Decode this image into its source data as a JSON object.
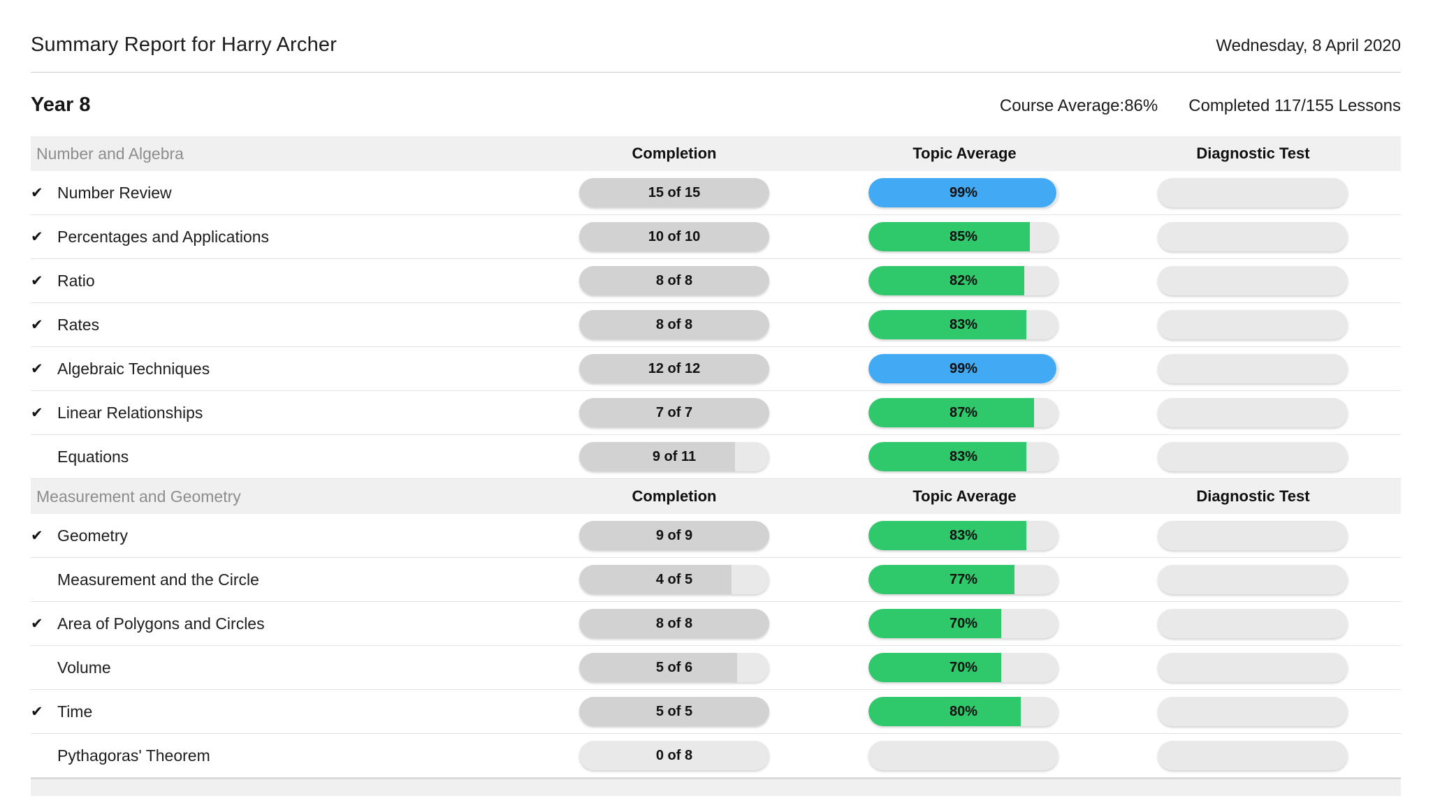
{
  "page": {
    "title": "Summary Report for Harry Archer",
    "date": "Wednesday, 8 April 2020"
  },
  "course": {
    "name": "Year 8",
    "average": "Course Average:86%",
    "completed": "Completed 117/155 Lessons"
  },
  "icons": {
    "check": "✔"
  },
  "colors": {
    "green": "#2fc96b",
    "blue": "#42aaf5",
    "completion_fill": "#d2d2d2",
    "track": "#e9e9e9",
    "section_band": "#f0f0f0"
  },
  "table": {
    "columns": [
      "Completion",
      "Topic Average",
      "Diagnostic Test"
    ],
    "sections": [
      {
        "name": "Number and Algebra",
        "rows": [
          {
            "topic": "Number Review",
            "checked": true,
            "completion": {
              "label": "15 of 15",
              "pct": 100
            },
            "average": {
              "label": "99%",
              "pct": 99,
              "color": "blue"
            },
            "diagnostic": null
          },
          {
            "topic": "Percentages and Applications",
            "checked": true,
            "completion": {
              "label": "10 of 10",
              "pct": 100
            },
            "average": {
              "label": "85%",
              "pct": 85,
              "color": "green"
            },
            "diagnostic": null
          },
          {
            "topic": "Ratio",
            "checked": true,
            "completion": {
              "label": "8 of 8",
              "pct": 100
            },
            "average": {
              "label": "82%",
              "pct": 82,
              "color": "green"
            },
            "diagnostic": null
          },
          {
            "topic": "Rates",
            "checked": true,
            "completion": {
              "label": "8 of 8",
              "pct": 100
            },
            "average": {
              "label": "83%",
              "pct": 83,
              "color": "green"
            },
            "diagnostic": null
          },
          {
            "topic": "Algebraic Techniques",
            "checked": true,
            "completion": {
              "label": "12 of 12",
              "pct": 100
            },
            "average": {
              "label": "99%",
              "pct": 99,
              "color": "blue"
            },
            "diagnostic": null
          },
          {
            "topic": "Linear Relationships",
            "checked": true,
            "completion": {
              "label": "7 of 7",
              "pct": 100
            },
            "average": {
              "label": "87%",
              "pct": 87,
              "color": "green"
            },
            "diagnostic": null
          },
          {
            "topic": "Equations",
            "checked": false,
            "completion": {
              "label": "9 of 11",
              "pct": 82
            },
            "average": {
              "label": "83%",
              "pct": 83,
              "color": "green"
            },
            "diagnostic": null
          }
        ]
      },
      {
        "name": "Measurement and Geometry",
        "rows": [
          {
            "topic": "Geometry",
            "checked": true,
            "completion": {
              "label": "9 of 9",
              "pct": 100
            },
            "average": {
              "label": "83%",
              "pct": 83,
              "color": "green"
            },
            "diagnostic": null
          },
          {
            "topic": "Measurement and the Circle",
            "checked": false,
            "completion": {
              "label": "4 of 5",
              "pct": 80
            },
            "average": {
              "label": "77%",
              "pct": 77,
              "color": "green"
            },
            "diagnostic": null
          },
          {
            "topic": "Area of Polygons and Circles",
            "checked": true,
            "completion": {
              "label": "8 of 8",
              "pct": 100
            },
            "average": {
              "label": "70%",
              "pct": 70,
              "color": "green"
            },
            "diagnostic": null
          },
          {
            "topic": "Volume",
            "checked": false,
            "completion": {
              "label": "5 of 6",
              "pct": 83
            },
            "average": {
              "label": "70%",
              "pct": 70,
              "color": "green"
            },
            "diagnostic": null
          },
          {
            "topic": "Time",
            "checked": true,
            "completion": {
              "label": "5 of 5",
              "pct": 100
            },
            "average": {
              "label": "80%",
              "pct": 80,
              "color": "green"
            },
            "diagnostic": null
          },
          {
            "topic": "Pythagoras' Theorem",
            "checked": false,
            "completion": {
              "label": "0 of 8",
              "pct": 0
            },
            "average": null,
            "diagnostic": null
          }
        ]
      }
    ]
  }
}
